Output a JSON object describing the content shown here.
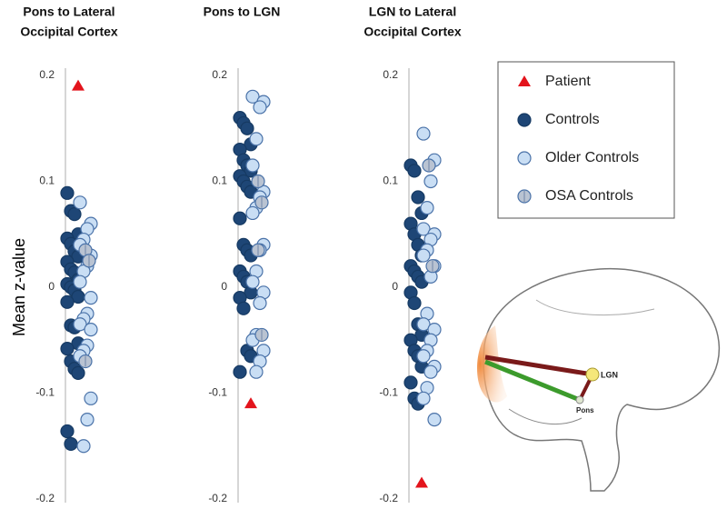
{
  "chart_data": {
    "type": "strip",
    "ylabel": "Mean z-value",
    "ylim": [
      -0.2,
      0.2
    ],
    "yticks": [
      0.2,
      0.1,
      0,
      -0.1,
      -0.2
    ],
    "series": [
      {
        "name": "Patient",
        "color": "#e3141c",
        "marker": "triangle"
      },
      {
        "name": "Controls",
        "color": "#1e4676",
        "marker": "circle"
      },
      {
        "name": "Older Controls",
        "color": "#c9def4",
        "marker": "circle"
      },
      {
        "name": "OSA Controls",
        "color": "#b9c3d2",
        "marker": "circle"
      }
    ],
    "panels": [
      {
        "title": [
          "Pons to Lateral",
          "Occipital Cortex"
        ],
        "values": [
          [
            0.19
          ],
          [
            0.089,
            0.072,
            0.069,
            0.05,
            0.046,
            0.041,
            0.034,
            0.029,
            0.024,
            0.017,
            0.014,
            0.007,
            0.003,
            0,
            -0.003,
            -0.009,
            -0.014,
            -0.036,
            -0.038,
            -0.053,
            -0.058,
            -0.07,
            -0.077,
            -0.081,
            -0.136,
            -0.148
          ],
          [
            0.08,
            0.06,
            0.055,
            0.045,
            0.04,
            0.03,
            0.02,
            0.015,
            0.005,
            -0.01,
            -0.025,
            -0.03,
            -0.035,
            -0.04,
            -0.055,
            -0.06,
            -0.065,
            -0.105,
            -0.125,
            -0.15
          ],
          [
            0.035,
            0.025,
            -0.07
          ]
        ]
      },
      {
        "title": [
          "Pons to LGN"
        ],
        "values": [
          [
            -0.11
          ],
          [
            0.16,
            0.155,
            0.15,
            0.135,
            0.13,
            0.12,
            0.115,
            0.11,
            0.105,
            0.1,
            0.095,
            0.09,
            0.065,
            0.04,
            0.035,
            0.03,
            0.015,
            0.01,
            0.005,
            -0.005,
            -0.01,
            -0.02,
            -0.06,
            -0.065,
            -0.08
          ],
          [
            0.18,
            0.175,
            0.17,
            0.14,
            0.115,
            0.09,
            0.085,
            0.075,
            0.07,
            0.04,
            0.035,
            0.015,
            0.005,
            -0.005,
            -0.015,
            -0.045,
            -0.05,
            -0.06,
            -0.07,
            -0.08
          ],
          [
            0.1,
            0.08,
            0.035,
            -0.045
          ]
        ]
      },
      {
        "title": [
          "LGN to Lateral",
          "Occipital Cortex"
        ],
        "values": [
          [
            -0.185
          ],
          [
            0.115,
            0.11,
            0.085,
            0.07,
            0.06,
            0.05,
            0.04,
            0.03,
            0.02,
            0.015,
            0.01,
            0.005,
            -0.005,
            -0.015,
            -0.035,
            -0.045,
            -0.05,
            -0.06,
            -0.065,
            -0.075,
            -0.09,
            -0.105,
            -0.11
          ],
          [
            0.145,
            0.12,
            0.1,
            0.075,
            0.055,
            0.05,
            0.045,
            0.035,
            0.03,
            0.02,
            0.01,
            -0.025,
            -0.035,
            -0.04,
            -0.05,
            -0.06,
            -0.065,
            -0.075,
            -0.08,
            -0.095,
            -0.105,
            -0.125
          ],
          [
            0.115,
            0.02
          ]
        ]
      }
    ]
  },
  "diagram": {
    "labels": [
      "LGN",
      "Pons"
    ]
  }
}
